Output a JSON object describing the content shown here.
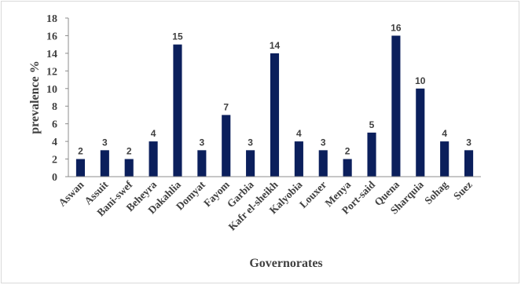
{
  "chart_data": {
    "type": "bar",
    "title": "",
    "xlabel": "Governorates",
    "ylabel": "prevalence %",
    "ylim": [
      0,
      18
    ],
    "yticks": [
      0,
      2,
      4,
      6,
      8,
      10,
      12,
      14,
      16,
      18
    ],
    "grid": false,
    "legend": "none",
    "bar_color": "#0b1f5c",
    "categories": [
      "Aswan",
      "Assuit",
      "Bani-swef",
      "Beheyra",
      "Dakahlia",
      "Domyat",
      "Fayom",
      "Garbia",
      "Kafr el-sheikh",
      "Kalyobia",
      "Louxer",
      "Menya",
      "Port-said",
      "Quena",
      "Sharquia",
      "Sohag",
      "Suez"
    ],
    "values": [
      2,
      3,
      2,
      4,
      15,
      3,
      7,
      3,
      14,
      4,
      3,
      2,
      5,
      16,
      10,
      4,
      3
    ]
  }
}
